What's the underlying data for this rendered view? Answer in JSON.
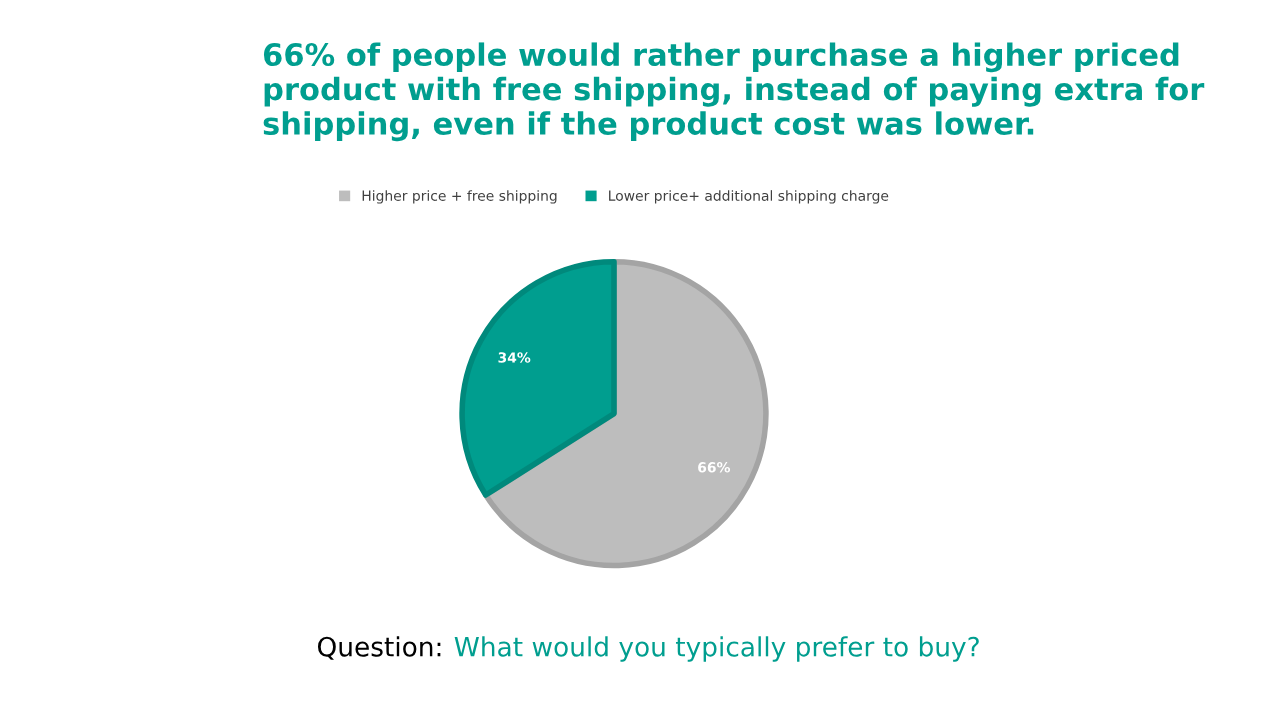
{
  "chart_data": {
    "type": "pie",
    "title": "66% of people would rather purchase a higher priced product with free shipping, instead of paying extra for shipping, even if the product cost was lower.",
    "categories": [
      "Higher price + free shipping",
      "Lower price+ additional shipping charge"
    ],
    "values": [
      66,
      34
    ],
    "colors": [
      "#bdbdbd",
      "#009e8f"
    ],
    "value_labels": [
      "66%",
      "34%"
    ],
    "legend": "top",
    "annotations": [
      "Question:",
      "What would you typically prefer to buy?"
    ]
  }
}
